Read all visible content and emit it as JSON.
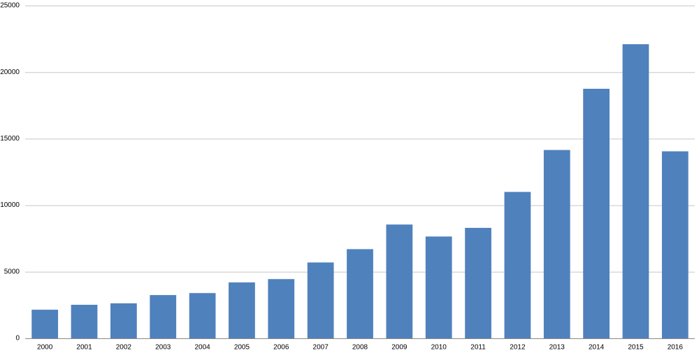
{
  "chart_data": {
    "type": "bar",
    "categories": [
      "2000",
      "2001",
      "2002",
      "2003",
      "2004",
      "2005",
      "2006",
      "2007",
      "2008",
      "2009",
      "2010",
      "2011",
      "2012",
      "2013",
      "2014",
      "2015",
      "2016"
    ],
    "values": [
      2150,
      2520,
      2630,
      3250,
      3400,
      4200,
      4450,
      5700,
      6700,
      8550,
      7650,
      8300,
      11000,
      14150,
      18750,
      22100,
      14050
    ],
    "color": "#4f81bd",
    "ylim": [
      0,
      25000
    ],
    "yticks": [
      0,
      5000,
      10000,
      15000,
      20000,
      25000
    ],
    "grid": true
  }
}
